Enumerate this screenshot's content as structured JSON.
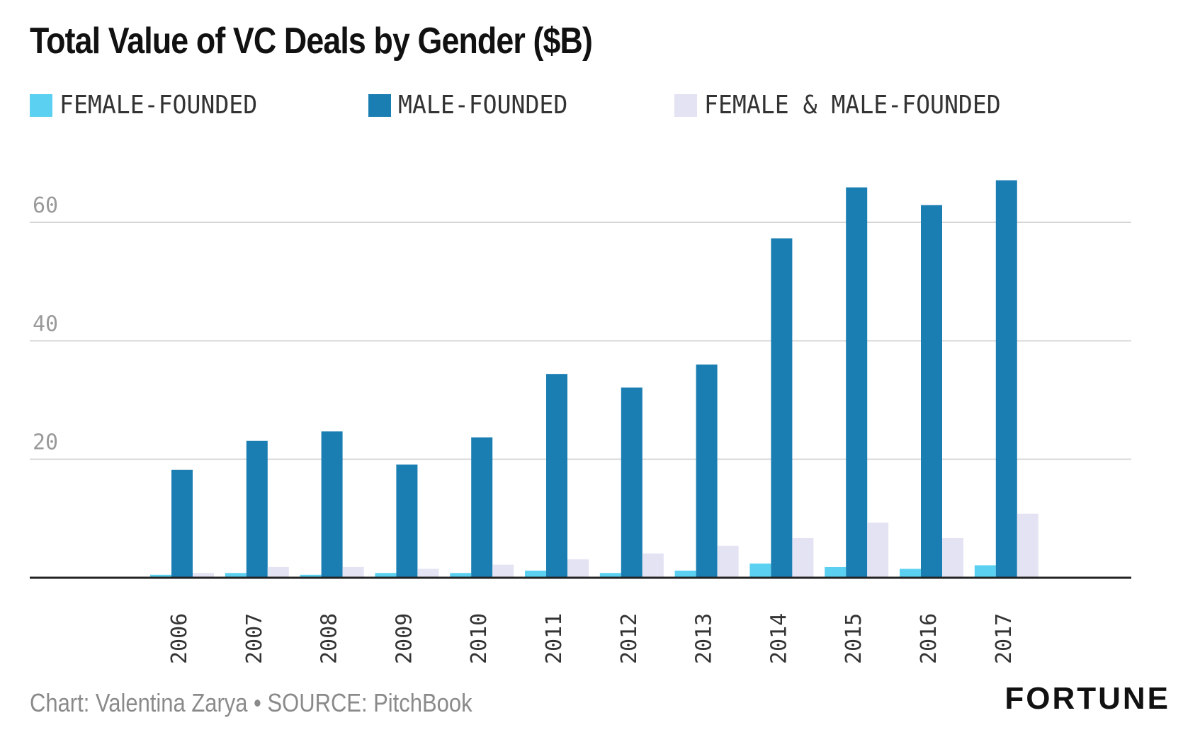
{
  "chart_data": {
    "type": "bar",
    "title": "Total Value of VC Deals by Gender ($B)",
    "categories": [
      "2006",
      "2007",
      "2008",
      "2009",
      "2010",
      "2011",
      "2012",
      "2013",
      "2014",
      "2015",
      "2016",
      "2017"
    ],
    "series": [
      {
        "name": "FEMALE-FOUNDED",
        "color": "#5bd0f0",
        "values": [
          0.5,
          0.8,
          0.5,
          0.8,
          0.8,
          1.2,
          0.8,
          1.2,
          2.4,
          1.8,
          1.5,
          2.1
        ]
      },
      {
        "name": "MALE-FOUNDED",
        "color": "#1b7eb3",
        "values": [
          18.2,
          23.1,
          24.7,
          19.1,
          23.7,
          34.4,
          32.1,
          36.0,
          57.3,
          65.9,
          62.9,
          67.1
        ]
      },
      {
        "name": "FEMALE & MALE-FOUNDED",
        "color": "#e3e3f3",
        "values": [
          0.8,
          1.8,
          1.8,
          1.5,
          2.2,
          3.1,
          4.1,
          5.4,
          6.7,
          9.3,
          6.7,
          10.8
        ]
      }
    ],
    "y_ticks": [
      20,
      40,
      60
    ],
    "ylim": [
      0,
      70
    ],
    "grid": true,
    "legend": "top",
    "xlabel": "",
    "ylabel": ""
  },
  "footer": {
    "credit": "Chart: Valentina Zarya • SOURCE: PitchBook",
    "brand": "FORTUNE"
  }
}
